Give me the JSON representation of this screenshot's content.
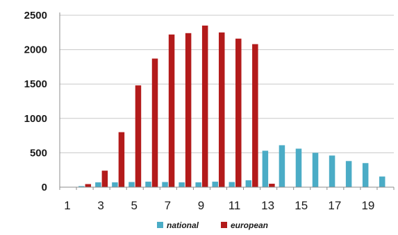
{
  "chart_data": {
    "type": "bar",
    "x": [
      1,
      2,
      3,
      4,
      5,
      6,
      7,
      8,
      9,
      10,
      11,
      12,
      13,
      14,
      15,
      16,
      17,
      18,
      19,
      20
    ],
    "x_tick_labels": [
      "1",
      "3",
      "5",
      "7",
      "9",
      "11",
      "13",
      "15",
      "17",
      "19"
    ],
    "x_tick_values": [
      1,
      3,
      5,
      7,
      9,
      11,
      13,
      15,
      17,
      19
    ],
    "ylim": [
      0,
      2500
    ],
    "y_ticks": [
      0,
      500,
      1000,
      1500,
      2000,
      2500
    ],
    "grid": "horizontal",
    "legend_position": "bottom",
    "series": [
      {
        "name": "national",
        "color": "#4bacc6",
        "values": [
          5,
          15,
          70,
          70,
          75,
          80,
          75,
          70,
          70,
          80,
          75,
          100,
          530,
          610,
          560,
          500,
          460,
          380,
          350,
          155
        ]
      },
      {
        "name": "european",
        "color": "#b31b1b",
        "values": [
          0,
          45,
          240,
          800,
          1480,
          1870,
          2220,
          2240,
          2350,
          2250,
          2160,
          2080,
          50,
          0,
          0,
          0,
          0,
          0,
          0,
          0
        ]
      }
    ]
  }
}
